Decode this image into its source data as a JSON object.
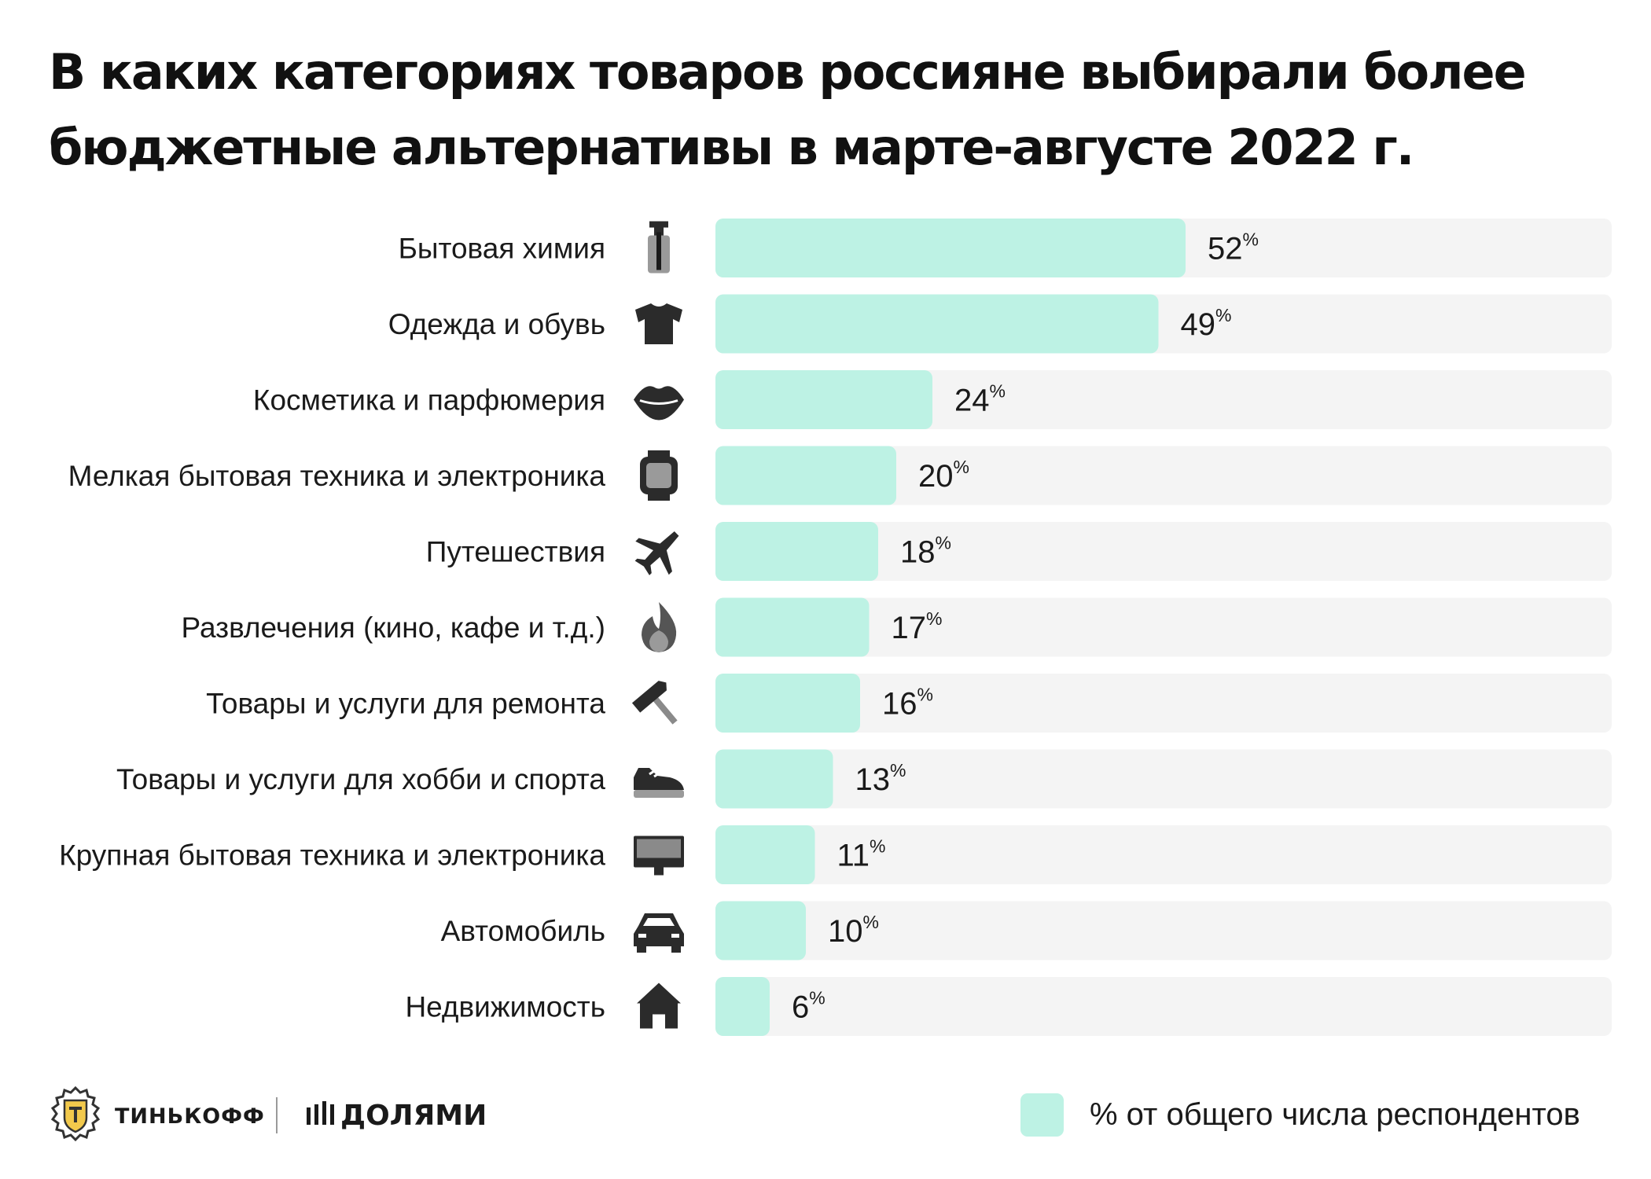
{
  "title_lines": [
    "В каких категориях товаров россияне выбирали более",
    "бюджетные альтернативы в марте-августе 2022 г."
  ],
  "colors": {
    "bar": "#bdf2e4",
    "track": "#f4f4f4",
    "icon_dark": "#2b2b2b",
    "text": "#1a1a1a"
  },
  "chart_data": {
    "type": "bar",
    "orientation": "horizontal",
    "title": "В каких категориях товаров россияне выбирали более бюджетные альтернативы в марте-августе 2022 г.",
    "categories": [
      "Бытовая химия",
      "Одежда и обувь",
      "Косметика и парфюмерия",
      "Мелкая бытовая техника и электроника",
      "Путешествия",
      "Развлечения (кино, кафе и т.д.)",
      "Товары и услуги для ремонта",
      "Товары и услуги для хобби и спорта",
      "Крупная бытовая техника и электроника",
      "Автомобиль",
      "Недвижимость"
    ],
    "icons": [
      "spray-bottle-icon",
      "tshirt-icon",
      "lips-icon",
      "smartwatch-icon",
      "airplane-icon",
      "flame-icon",
      "hammer-icon",
      "sneaker-icon",
      "monitor-icon",
      "car-icon",
      "house-icon"
    ],
    "values": [
      52,
      49,
      24,
      20,
      18,
      17,
      16,
      13,
      11,
      10,
      6
    ],
    "value_suffix": "%",
    "xlim": [
      0,
      100
    ],
    "grid": false,
    "legend": {
      "position": "bottom-right",
      "label": "% от общего числа респондентов"
    }
  },
  "footer": {
    "brand_1": "ТИНЬКОФФ",
    "brand_2": "ДОЛЯМИ"
  }
}
